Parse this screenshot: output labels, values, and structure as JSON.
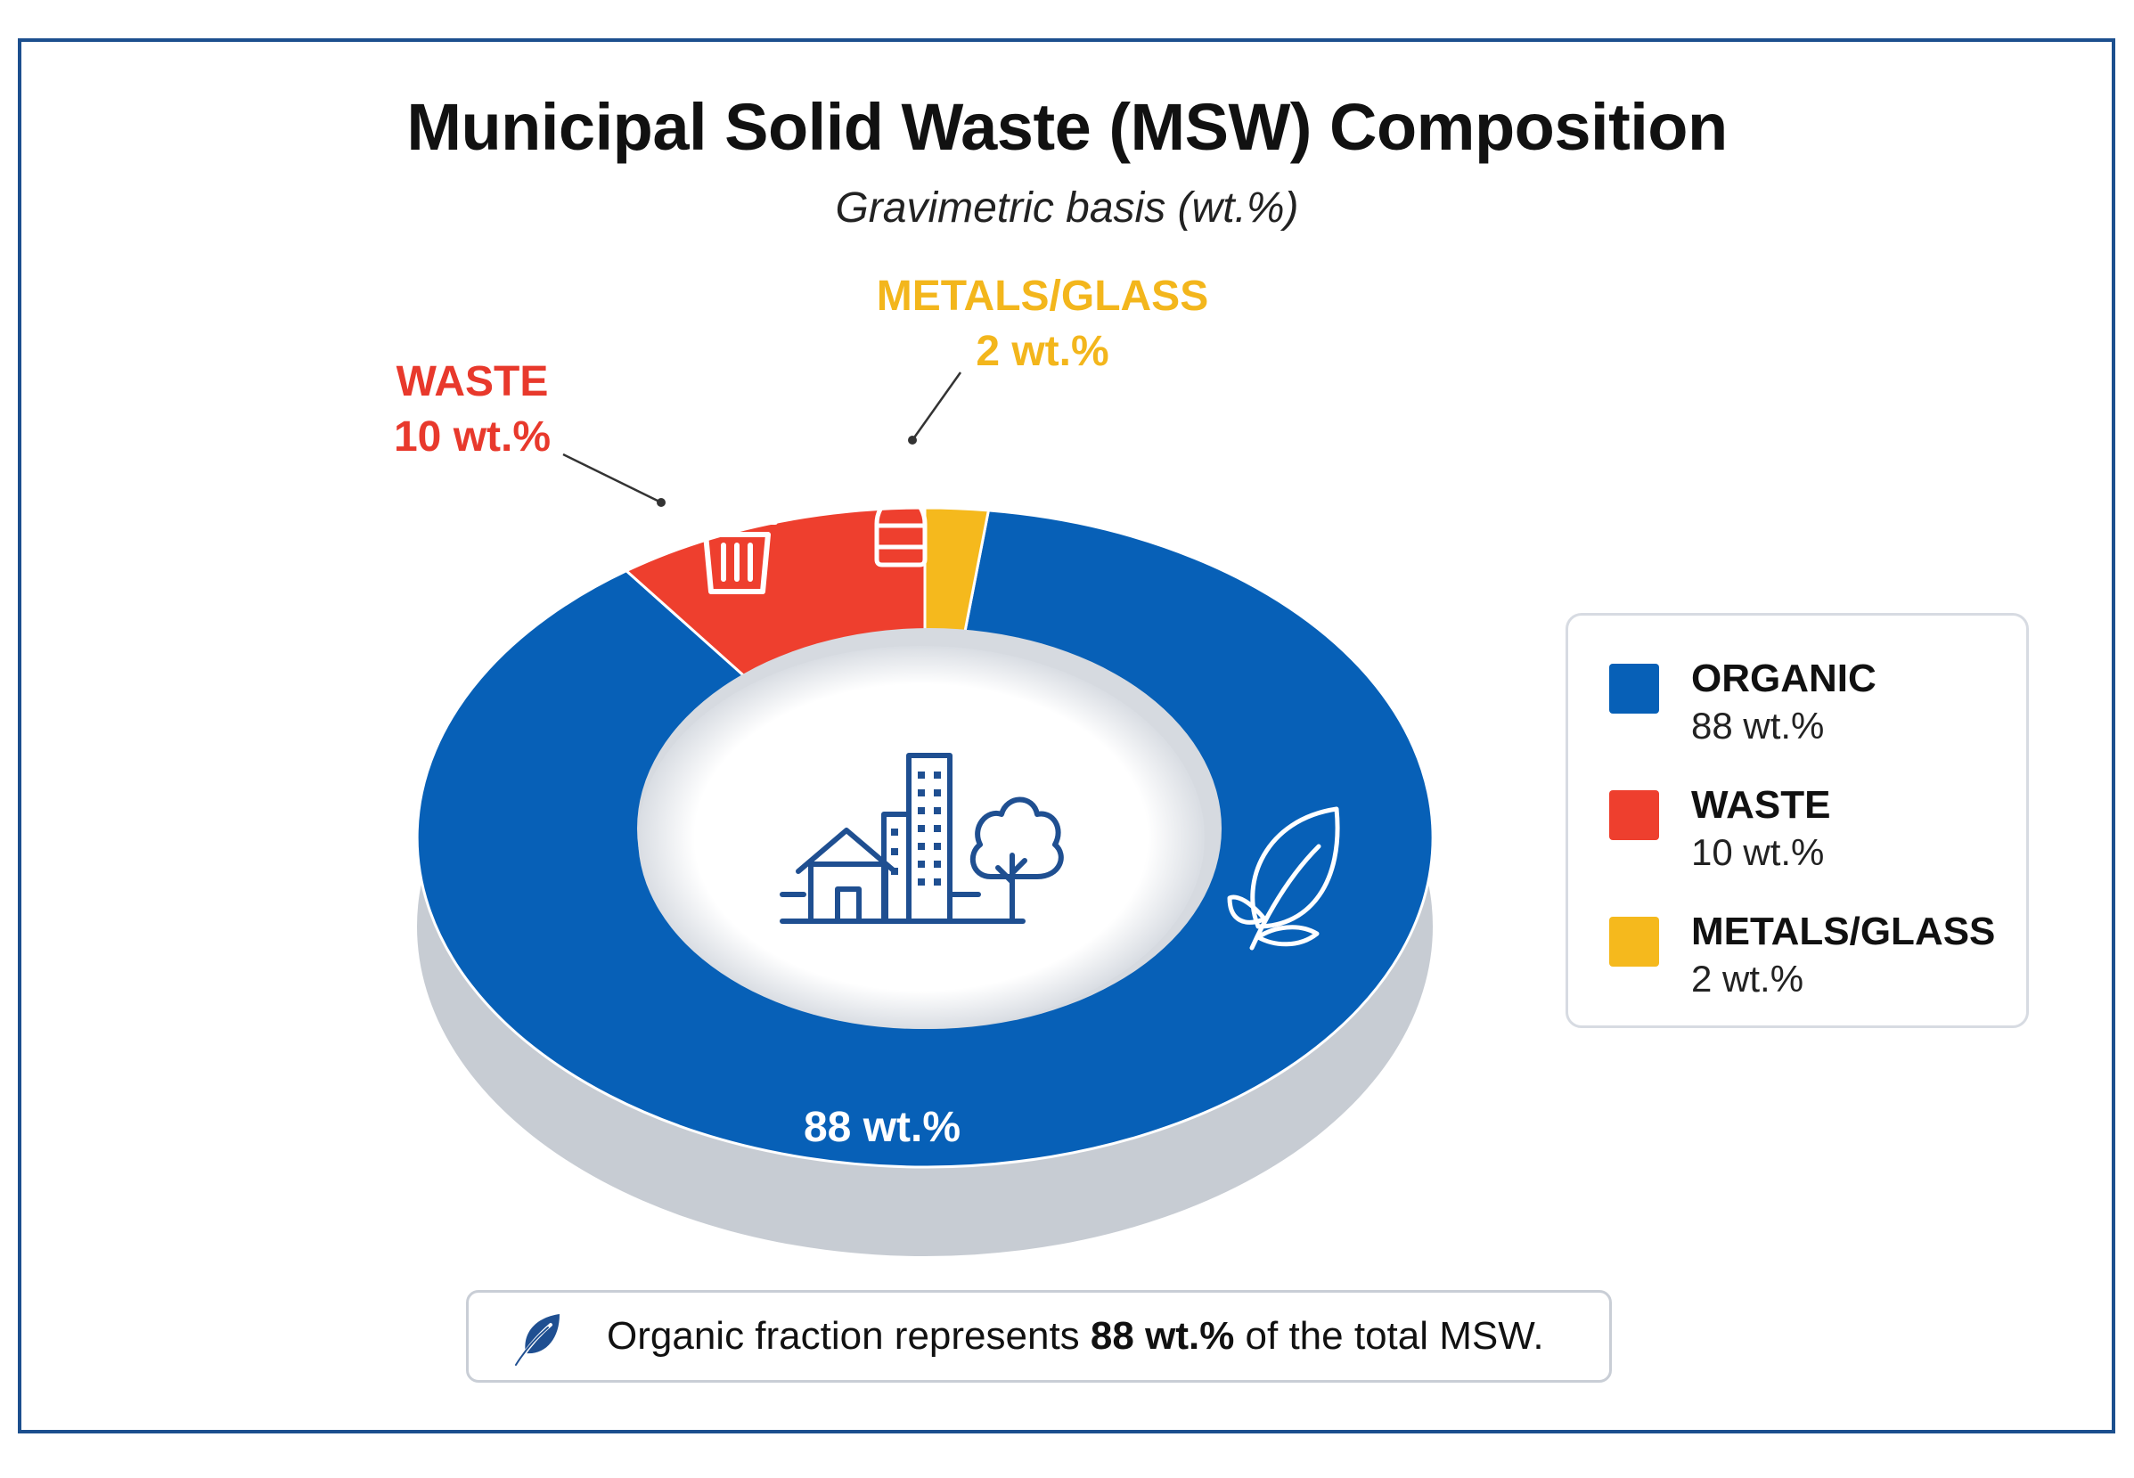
{
  "title": "Municipal Solid Waste (MSW) Composition",
  "subtitle": "Gravimetric basis (wt.%)",
  "colors": {
    "organic": "#0760b7",
    "waste": "#ee3f2e",
    "metals_glass": "#f5b91d",
    "frame": "#1c4f8e",
    "icon_dark": "#1f4f91"
  },
  "icons": {
    "center": "city-buildings-tree-icon",
    "organic_slice": "leaf-icon",
    "waste_slice": "trash-can-icon",
    "metals_slice": "bottle-icon",
    "note": "leaf-icon"
  },
  "callouts": {
    "waste": {
      "name": "WASTE",
      "value": "10 wt.%"
    },
    "metals_glass": {
      "name": "METALS/GLASS",
      "value": "2 wt.%"
    },
    "organic": {
      "value": "88 wt.%"
    }
  },
  "legend": {
    "placement": "right",
    "items": [
      {
        "name": "ORGANIC",
        "value": "88 wt.%"
      },
      {
        "name": "WASTE",
        "value": "10 wt.%"
      },
      {
        "name": "METALS/GLASS",
        "value": "2 wt.%"
      }
    ]
  },
  "note": {
    "before": "Organic fraction represents ",
    "emphasis": "88 wt.%",
    "after": " of the total MSW."
  },
  "chart_data": {
    "type": "pie",
    "donut": true,
    "title": "Municipal Solid Waste (MSW) Composition",
    "subtitle": "Gravimetric basis (wt.%)",
    "categories": [
      "ORGANIC",
      "WASTE",
      "METALS/GLASS"
    ],
    "values": [
      88,
      10,
      2
    ],
    "unit": "wt.%",
    "legend": "right"
  }
}
